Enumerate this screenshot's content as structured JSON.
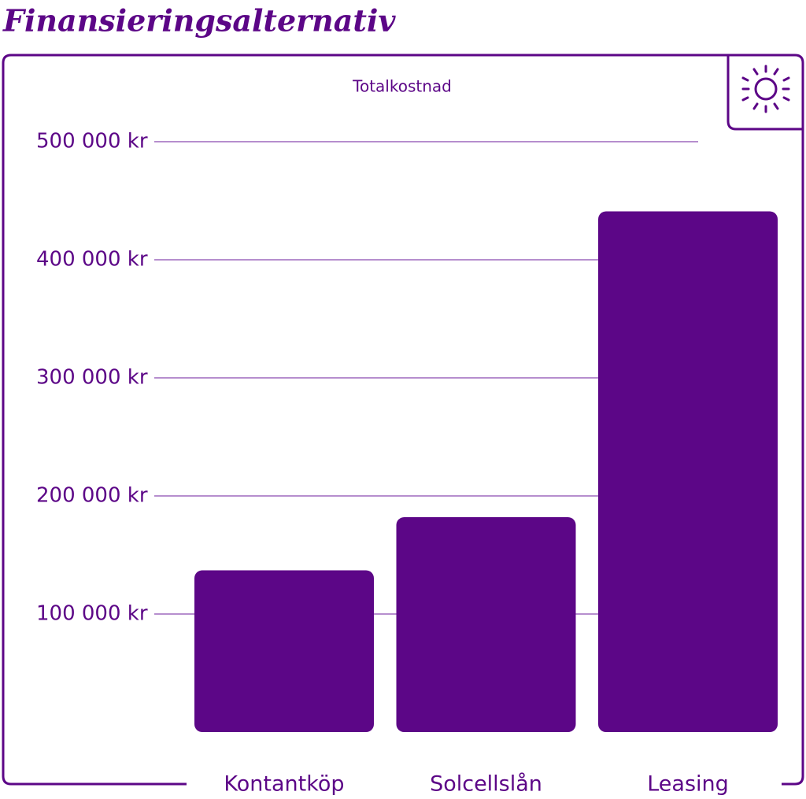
{
  "chart_data": {
    "type": "bar",
    "title": "Finansieringsalternativ",
    "subtitle": "Totalkostnad",
    "categories": [
      "Kontantköp",
      "Solcellslån",
      "Leasing"
    ],
    "values": [
      137000,
      182000,
      441000
    ],
    "color": "#5c0687",
    "ylim": [
      0,
      500000
    ],
    "yticks": [
      {
        "value": 100000,
        "label": "100 000 kr"
      },
      {
        "value": 200000,
        "label": "200 000 kr"
      },
      {
        "value": 300000,
        "label": "300 000 kr"
      },
      {
        "value": 400000,
        "label": "400 000 kr"
      },
      {
        "value": 500000,
        "label": "500 000 kr"
      }
    ],
    "grid": true
  }
}
